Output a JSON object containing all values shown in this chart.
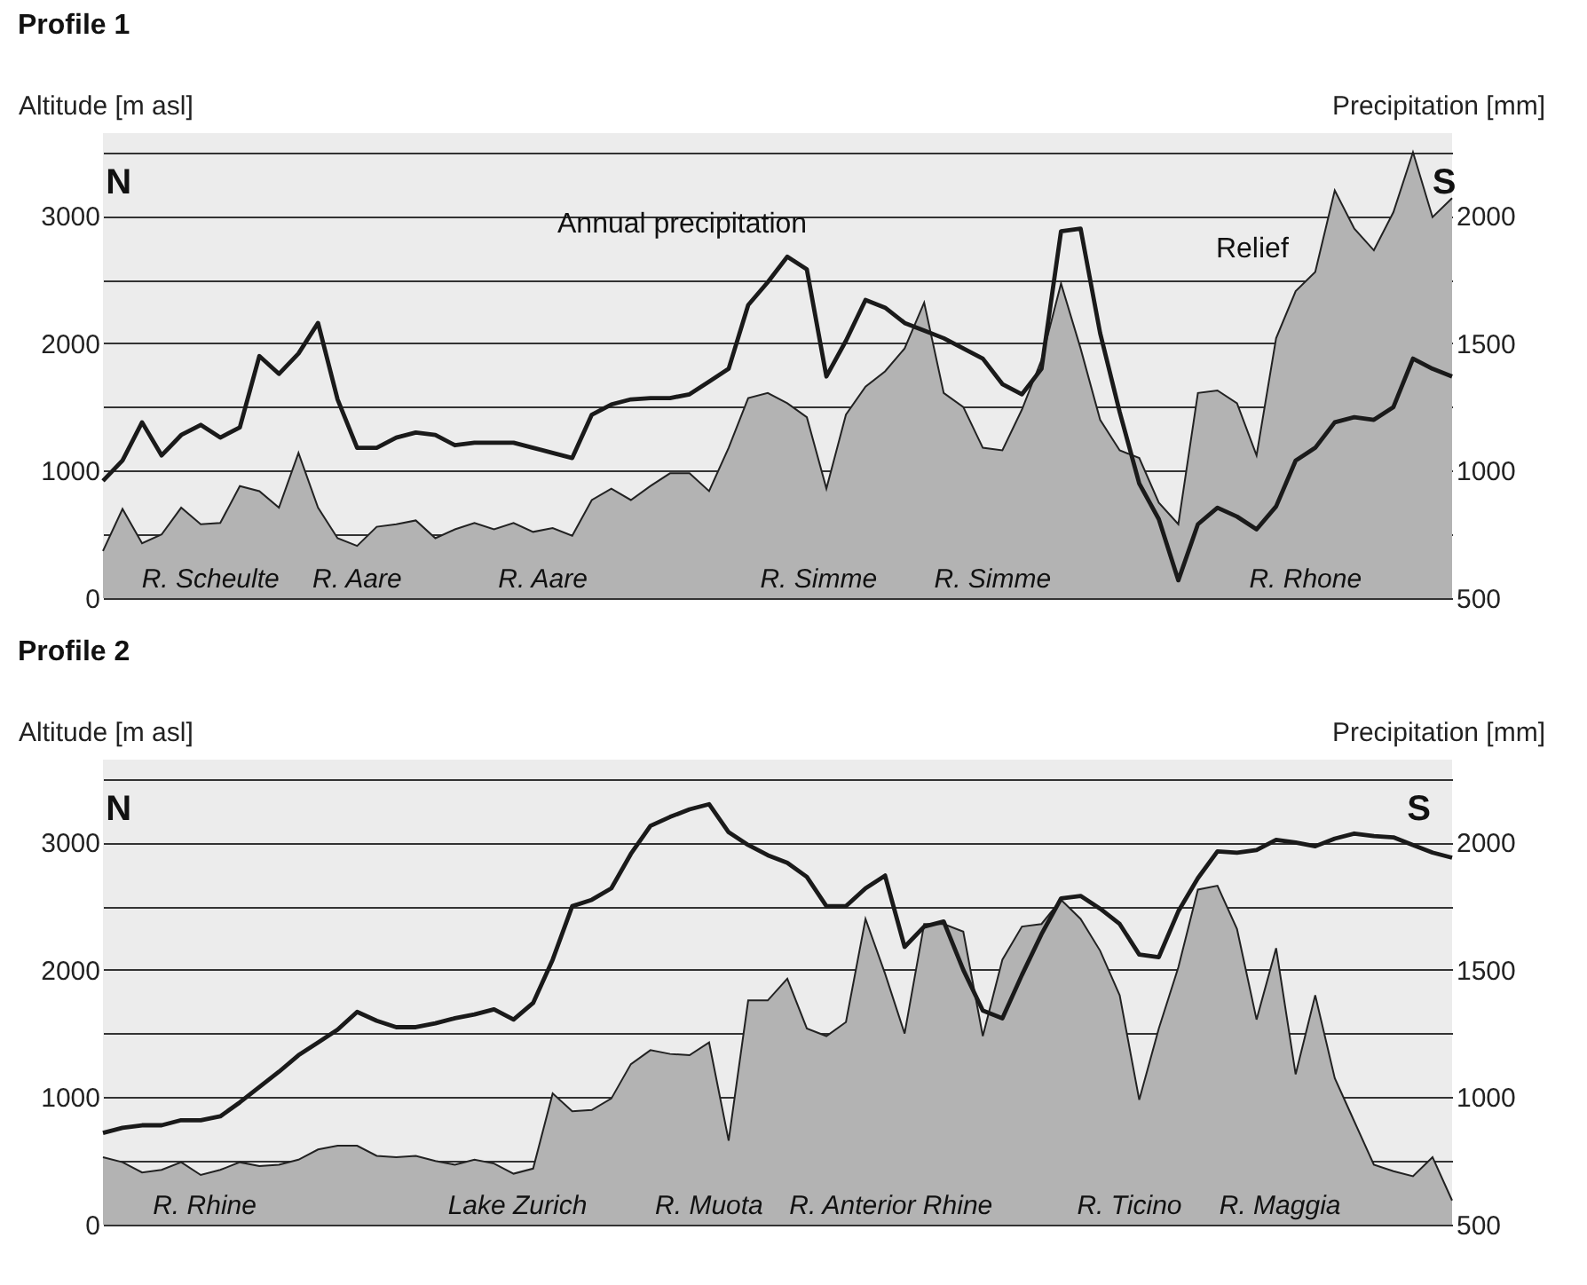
{
  "chart_data": [
    {
      "type": "area",
      "title": "Profile 1",
      "ylabel": "Altitude [m asl]",
      "y2label": "Precipitation [mm]",
      "categories": [
        null,
        null,
        null,
        null,
        null,
        null,
        null,
        null,
        null,
        null,
        null,
        null,
        null,
        null,
        null,
        null,
        null,
        null,
        null,
        null,
        null,
        null,
        null,
        null,
        null,
        null,
        null,
        null,
        null,
        null,
        null,
        null,
        null,
        null,
        null,
        null,
        null,
        null,
        null,
        null,
        null,
        null,
        null,
        null,
        null,
        null,
        null,
        null,
        null,
        null,
        null,
        null,
        null,
        null,
        null,
        null,
        null,
        null,
        null,
        null,
        null,
        null,
        null,
        null,
        null,
        null,
        null,
        null,
        null,
        null
      ],
      "series": [
        {
          "name": "Relief",
          "color": "#b3b3b3",
          "values": [
            370,
            700,
            430,
            500,
            710,
            580,
            590,
            880,
            840,
            710,
            1140,
            710,
            470,
            410,
            560,
            580,
            610,
            470,
            540,
            590,
            540,
            590,
            520,
            550,
            490,
            770,
            860,
            770,
            880,
            980,
            980,
            840,
            1180,
            1570,
            1610,
            1530,
            1420,
            860,
            1440,
            1660,
            1780,
            1960,
            2320,
            1610,
            1500,
            1180,
            1160,
            1480,
            1870,
            2470,
            1960,
            1400,
            1160,
            1100,
            750,
            580,
            1610,
            1630,
            1530,
            1120,
            2040,
            2410,
            2560,
            3200,
            2900,
            2730,
            3030,
            3500,
            2990,
            3140
          ]
        },
        {
          "type": "line",
          "name": "Annual precipitation",
          "color": "#1a1a1a",
          "axis": "y2",
          "values": [
            960,
            1040,
            1190,
            1060,
            1140,
            1180,
            1130,
            1170,
            1450,
            1380,
            1460,
            1580,
            1280,
            1090,
            1090,
            1130,
            1150,
            1140,
            1100,
            1110,
            1110,
            1110,
            1090,
            1070,
            1050,
            1220,
            1260,
            1280,
            1285,
            1285,
            1300,
            1350,
            1400,
            1650,
            1740,
            1840,
            1790,
            1370,
            1510,
            1670,
            1640,
            1580,
            1550,
            1520,
            1480,
            1440,
            1340,
            1300,
            1400,
            1940,
            1950,
            1540,
            1230,
            950,
            810,
            570,
            790,
            855,
            820,
            770,
            860,
            1040,
            1090,
            1190,
            1210,
            1200,
            1250,
            1440,
            1400,
            1370
          ]
        }
      ],
      "ylim": [
        0,
        3650
      ],
      "yticks": [
        0,
        {
          "value": 500,
          "label": null
        },
        1000,
        {
          "value": 1500,
          "label": null
        },
        2000,
        {
          "value": 2500,
          "label": null
        },
        3000,
        {
          "value": 3500,
          "label": null
        }
      ],
      "y2lim": [
        500,
        2325
      ],
      "y2ticks": [
        500,
        1000,
        1500,
        2000
      ],
      "grid": "y",
      "annotations": [
        "N",
        "S",
        "R. Scheulte",
        "R. Aare",
        "R. Aare",
        "R. Simme",
        "R. Simme",
        "R. Rhone"
      ]
    },
    {
      "type": "area",
      "title": "Profile 2",
      "ylabel": "Altitude [m asl]",
      "y2label": "Precipitation [mm]",
      "categories": [
        null,
        null,
        null,
        null,
        null,
        null,
        null,
        null,
        null,
        null,
        null,
        null,
        null,
        null,
        null,
        null,
        null,
        null,
        null,
        null,
        null,
        null,
        null,
        null,
        null,
        null,
        null,
        null,
        null,
        null,
        null,
        null,
        null,
        null,
        null,
        null,
        null,
        null,
        null,
        null,
        null,
        null,
        null,
        null,
        null,
        null,
        null,
        null,
        null,
        null,
        null,
        null,
        null,
        null,
        null,
        null,
        null,
        null,
        null,
        null,
        null,
        null,
        null,
        null,
        null,
        null,
        null,
        null,
        null,
        null
      ],
      "series": [
        {
          "color": "#b3b3b3",
          "values": [
            530,
            490,
            410,
            430,
            490,
            390,
            430,
            490,
            460,
            470,
            510,
            590,
            620,
            620,
            540,
            530,
            540,
            500,
            470,
            510,
            480,
            400,
            440,
            1030,
            890,
            900,
            990,
            1260,
            1370,
            1340,
            1330,
            1430,
            660,
            1760,
            1760,
            1930,
            1540,
            1480,
            1590,
            2400,
            1970,
            1500,
            2360,
            2360,
            2300,
            1480,
            2080,
            2340,
            2360,
            2550,
            2400,
            2150,
            1800,
            980,
            1540,
            2020,
            2630,
            2660,
            2320,
            1610,
            2170,
            1180,
            1800,
            1150,
            810,
            470,
            420,
            380,
            530,
            190
          ]
        },
        {
          "type": "line",
          "color": "#1a1a1a",
          "axis": "y2",
          "values": [
            860,
            880,
            890,
            890,
            910,
            910,
            925,
            980,
            1040,
            1100,
            1165,
            1215,
            1265,
            1335,
            1300,
            1275,
            1275,
            1290,
            1310,
            1325,
            1345,
            1305,
            1370,
            1540,
            1750,
            1775,
            1820,
            1955,
            2065,
            2100,
            2130,
            2150,
            2040,
            1990,
            1950,
            1920,
            1865,
            1750,
            1750,
            1820,
            1870,
            1590,
            1670,
            1690,
            1500,
            1340,
            1310,
            1480,
            1640,
            1780,
            1790,
            1740,
            1680,
            1560,
            1550,
            1730,
            1860,
            1965,
            1960,
            1970,
            2010,
            2000,
            1985,
            2015,
            2035,
            2025,
            2020,
            1990,
            1960,
            1940
          ]
        }
      ],
      "ylim": [
        0,
        3650
      ],
      "yticks": [
        0,
        {
          "value": 500,
          "label": null
        },
        1000,
        {
          "value": 1500,
          "label": null
        },
        2000,
        {
          "value": 2500,
          "label": null
        },
        3000,
        {
          "value": 3500,
          "label": null
        }
      ],
      "y2lim": [
        500,
        2325
      ],
      "y2ticks": [
        500,
        1000,
        1500,
        2000
      ],
      "grid": "y",
      "annotations": [
        "N",
        "S",
        "R. Rhine",
        "Lake Zurich",
        "R. Muota",
        "R. Anterior Rhine",
        "R. Ticino",
        "R. Maggia"
      ]
    }
  ]
}
